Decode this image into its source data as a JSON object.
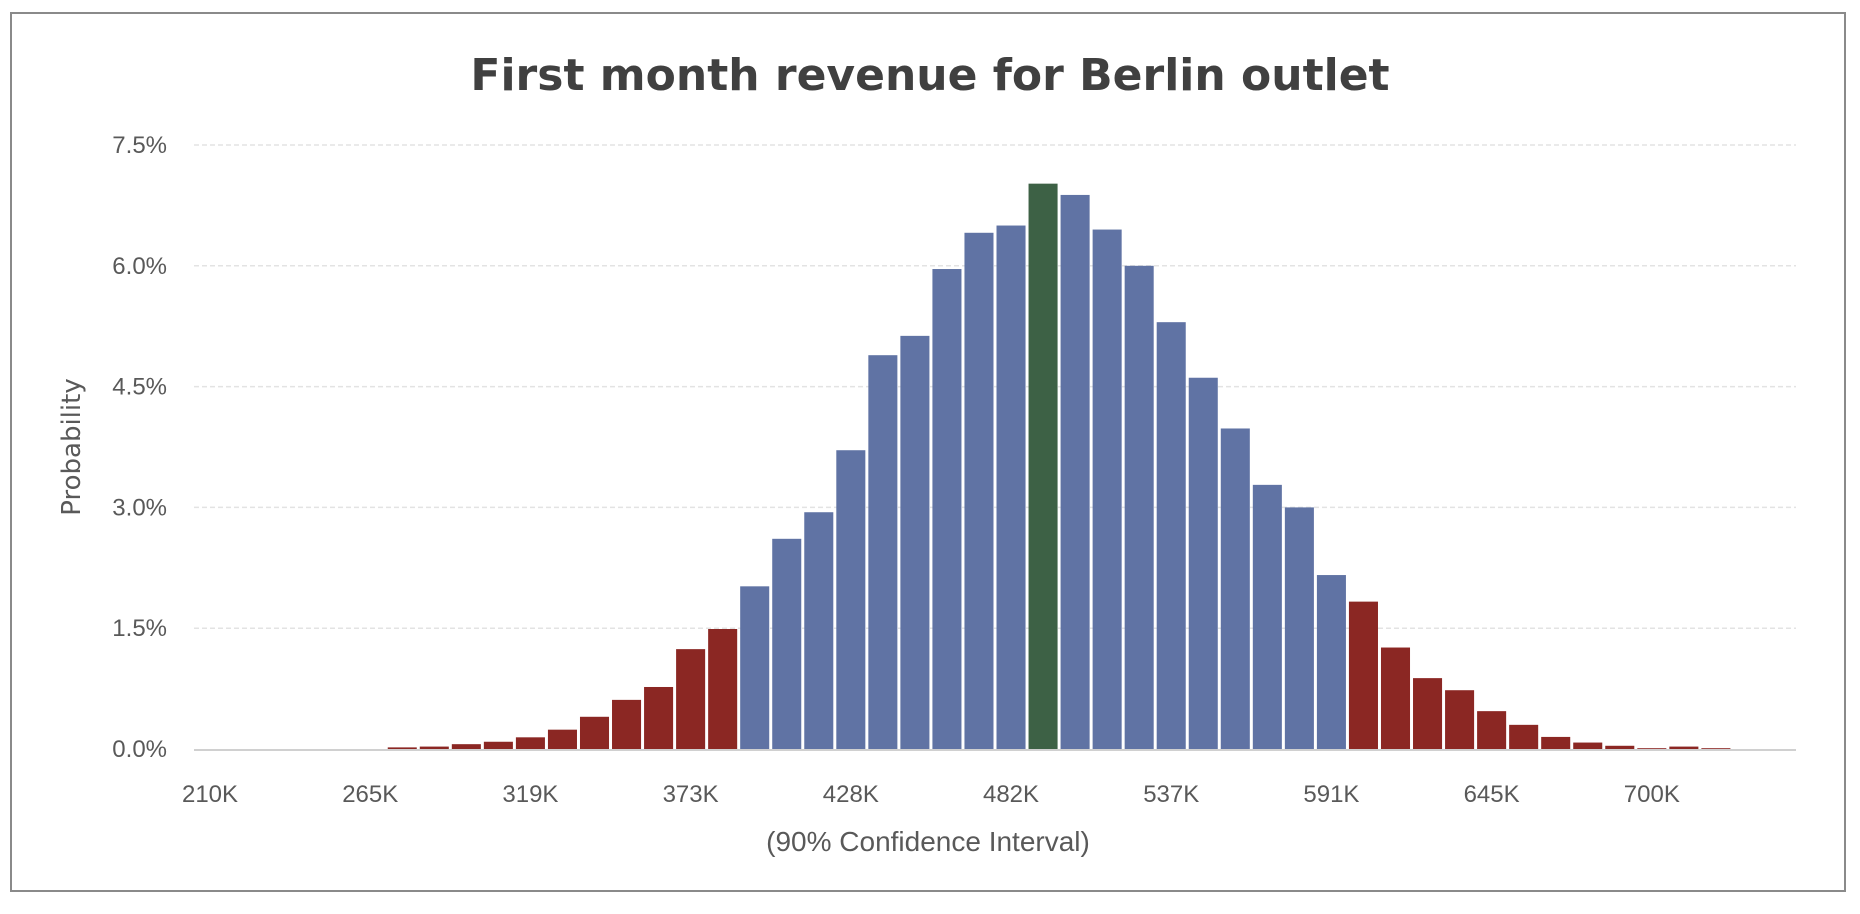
{
  "chart_data": {
    "type": "bar",
    "title": "First month revenue for Berlin outlet",
    "xlabel": "(90% Confidence Interval)",
    "ylabel": "Probability",
    "ylim": [
      0,
      7.5
    ],
    "y_unit": "%",
    "y_ticks": [
      "0.0%",
      "1.5%",
      "3.0%",
      "4.5%",
      "6.0%",
      "7.5%"
    ],
    "y_tick_values": [
      0,
      1.5,
      3.0,
      4.5,
      6.0,
      7.5
    ],
    "x_tick_labels": [
      "210K",
      "265K",
      "319K",
      "373K",
      "428K",
      "482K",
      "537K",
      "591K",
      "645K",
      "700K"
    ],
    "bins_per_tick": 5,
    "bin_count": 50,
    "first_bar_bin": 6,
    "values": [
      0.02,
      0.03,
      0.06,
      0.09,
      0.145,
      0.24,
      0.4,
      0.61,
      0.77,
      1.24,
      1.49,
      2.02,
      2.61,
      2.94,
      3.71,
      4.89,
      5.13,
      5.96,
      6.41,
      6.5,
      7.02,
      6.88,
      6.45,
      6.0,
      5.3,
      4.61,
      3.98,
      3.28,
      3.0,
      2.16,
      1.83,
      1.26,
      0.88,
      0.73,
      0.47,
      0.3,
      0.15,
      0.08,
      0.04,
      0.01,
      0.03,
      0.01
    ],
    "categories": [
      "tail",
      "tail",
      "tail",
      "tail",
      "tail",
      "tail",
      "tail",
      "tail",
      "tail",
      "tail",
      "tail",
      "ci",
      "ci",
      "ci",
      "ci",
      "ci",
      "ci",
      "ci",
      "ci",
      "ci",
      "peak",
      "ci",
      "ci",
      "ci",
      "ci",
      "ci",
      "ci",
      "ci",
      "ci",
      "ci",
      "tail",
      "tail",
      "tail",
      "tail",
      "tail",
      "tail",
      "tail",
      "tail",
      "tail",
      "tail",
      "tail",
      "tail"
    ],
    "colors": {
      "tail": "#8B2723",
      "ci": "#6073A4",
      "peak": "#3D6145"
    },
    "grid": true,
    "legend": "none"
  }
}
